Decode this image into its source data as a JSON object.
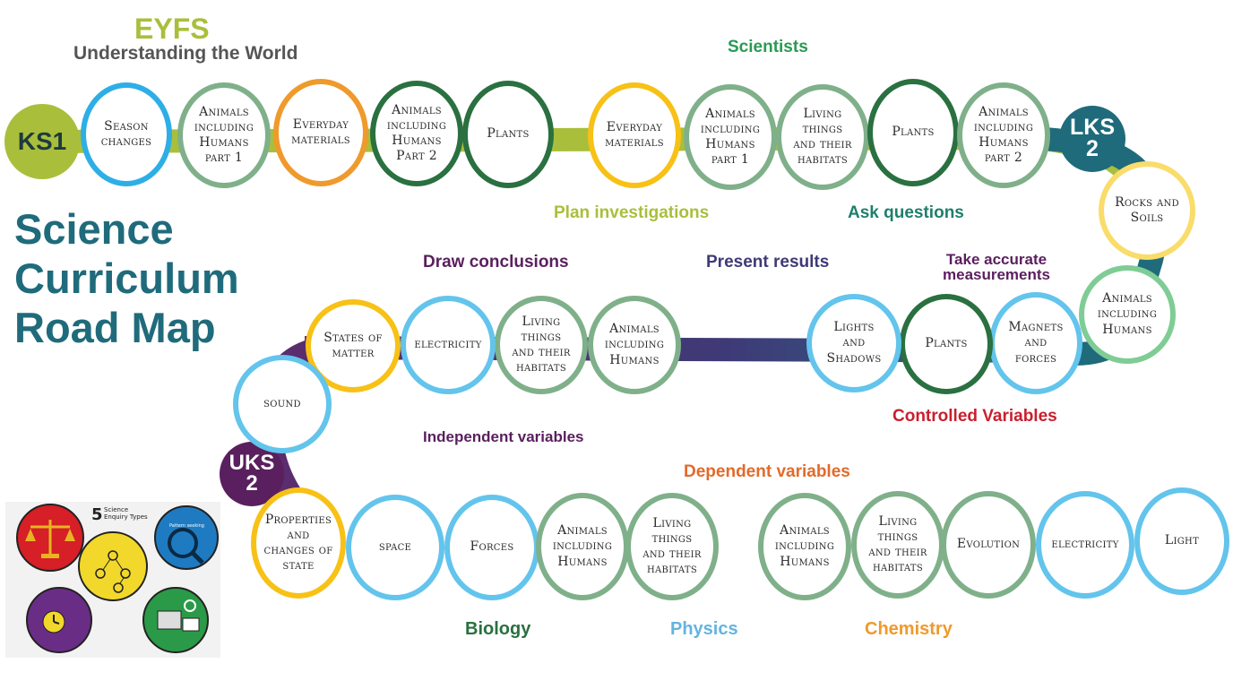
{
  "header": {
    "eyfs": "EYFS",
    "eyfs_sub": "Understanding the World"
  },
  "title_lines": [
    "Science",
    "Curriculum",
    "Road Map"
  ],
  "stages": {
    "ks1": "KS1",
    "lks2_a": "LKS",
    "lks2_b": "2",
    "uks2_a": "UKS",
    "uks2_b": "2"
  },
  "skills": {
    "scientists": "Scientists",
    "plan": "Plan investigations",
    "ask": "Ask questions",
    "draw": "Draw conclusions",
    "present": "Present results",
    "measure_a": "Take accurate",
    "measure_b": "measurements",
    "controlled": "Controlled Variables",
    "independent": "Independent variables",
    "dependent": "Dependent variables",
    "biology": "Biology",
    "physics": "Physics",
    "chemistry": "Chemistry"
  },
  "colors": {
    "road_green": "#a9bf3b",
    "road_teal": "#1f6b7c",
    "road_purple": "#5a2d6e",
    "road_red": "#c8202f",
    "road_yellow": "#e8b422",
    "ring_blue": "#63c4ec",
    "ring_yellow": "#f7c116",
    "ring_orange": "#ef9a2c",
    "ring_sage": "#7fb08a",
    "ring_darkgreen": "#2a7040",
    "ring_paleyellow": "#f9dc6a"
  },
  "topics": {
    "t1": "Season\nchanges",
    "t2": "Animals\nincluding\nHumans\npart 1",
    "t3": "Everyday\nmaterials",
    "t4": "Animals\nincluding\nHumans\nPart 2",
    "t5": "Plants",
    "t6": "Everyday\nmaterials",
    "t7": "Animals\nincluding\nHumans\npart 1",
    "t8": "Living\nthings\nand their\nhabitats",
    "t9": "Plants",
    "t10": "Animals\nincluding\nHumans\npart 2",
    "t11": "Rocks and\nSoils",
    "t12": "Animals\nincluding\nHumans",
    "t13": "Magnets\nand\nforces",
    "t14": "Plants",
    "t15": "Lights\nand\nShadows",
    "t16": "Animals\nincluding\nHumans",
    "t17": "Living\nthings\nand their\nhabitats",
    "t18": "electricity",
    "t19": "States of\nmatter",
    "t20": "sound",
    "t21": "Properties\nand\nchanges of\nstate",
    "t22": "space",
    "t23": "Forces",
    "t24": "Animals\nincluding\nHumans",
    "t25": "Living\nthings\nand their\nhabitats",
    "t26": "Animals\nincluding\nHumans",
    "t27": "Living\nthings\nand their\nhabitats",
    "t28": "Evolution",
    "t29": "electricity",
    "t30": "Light"
  },
  "inset": {
    "heading_num": "5",
    "heading_a": "Science",
    "heading_b": "Enquiry Types",
    "pattern": "Pattern seeking"
  }
}
